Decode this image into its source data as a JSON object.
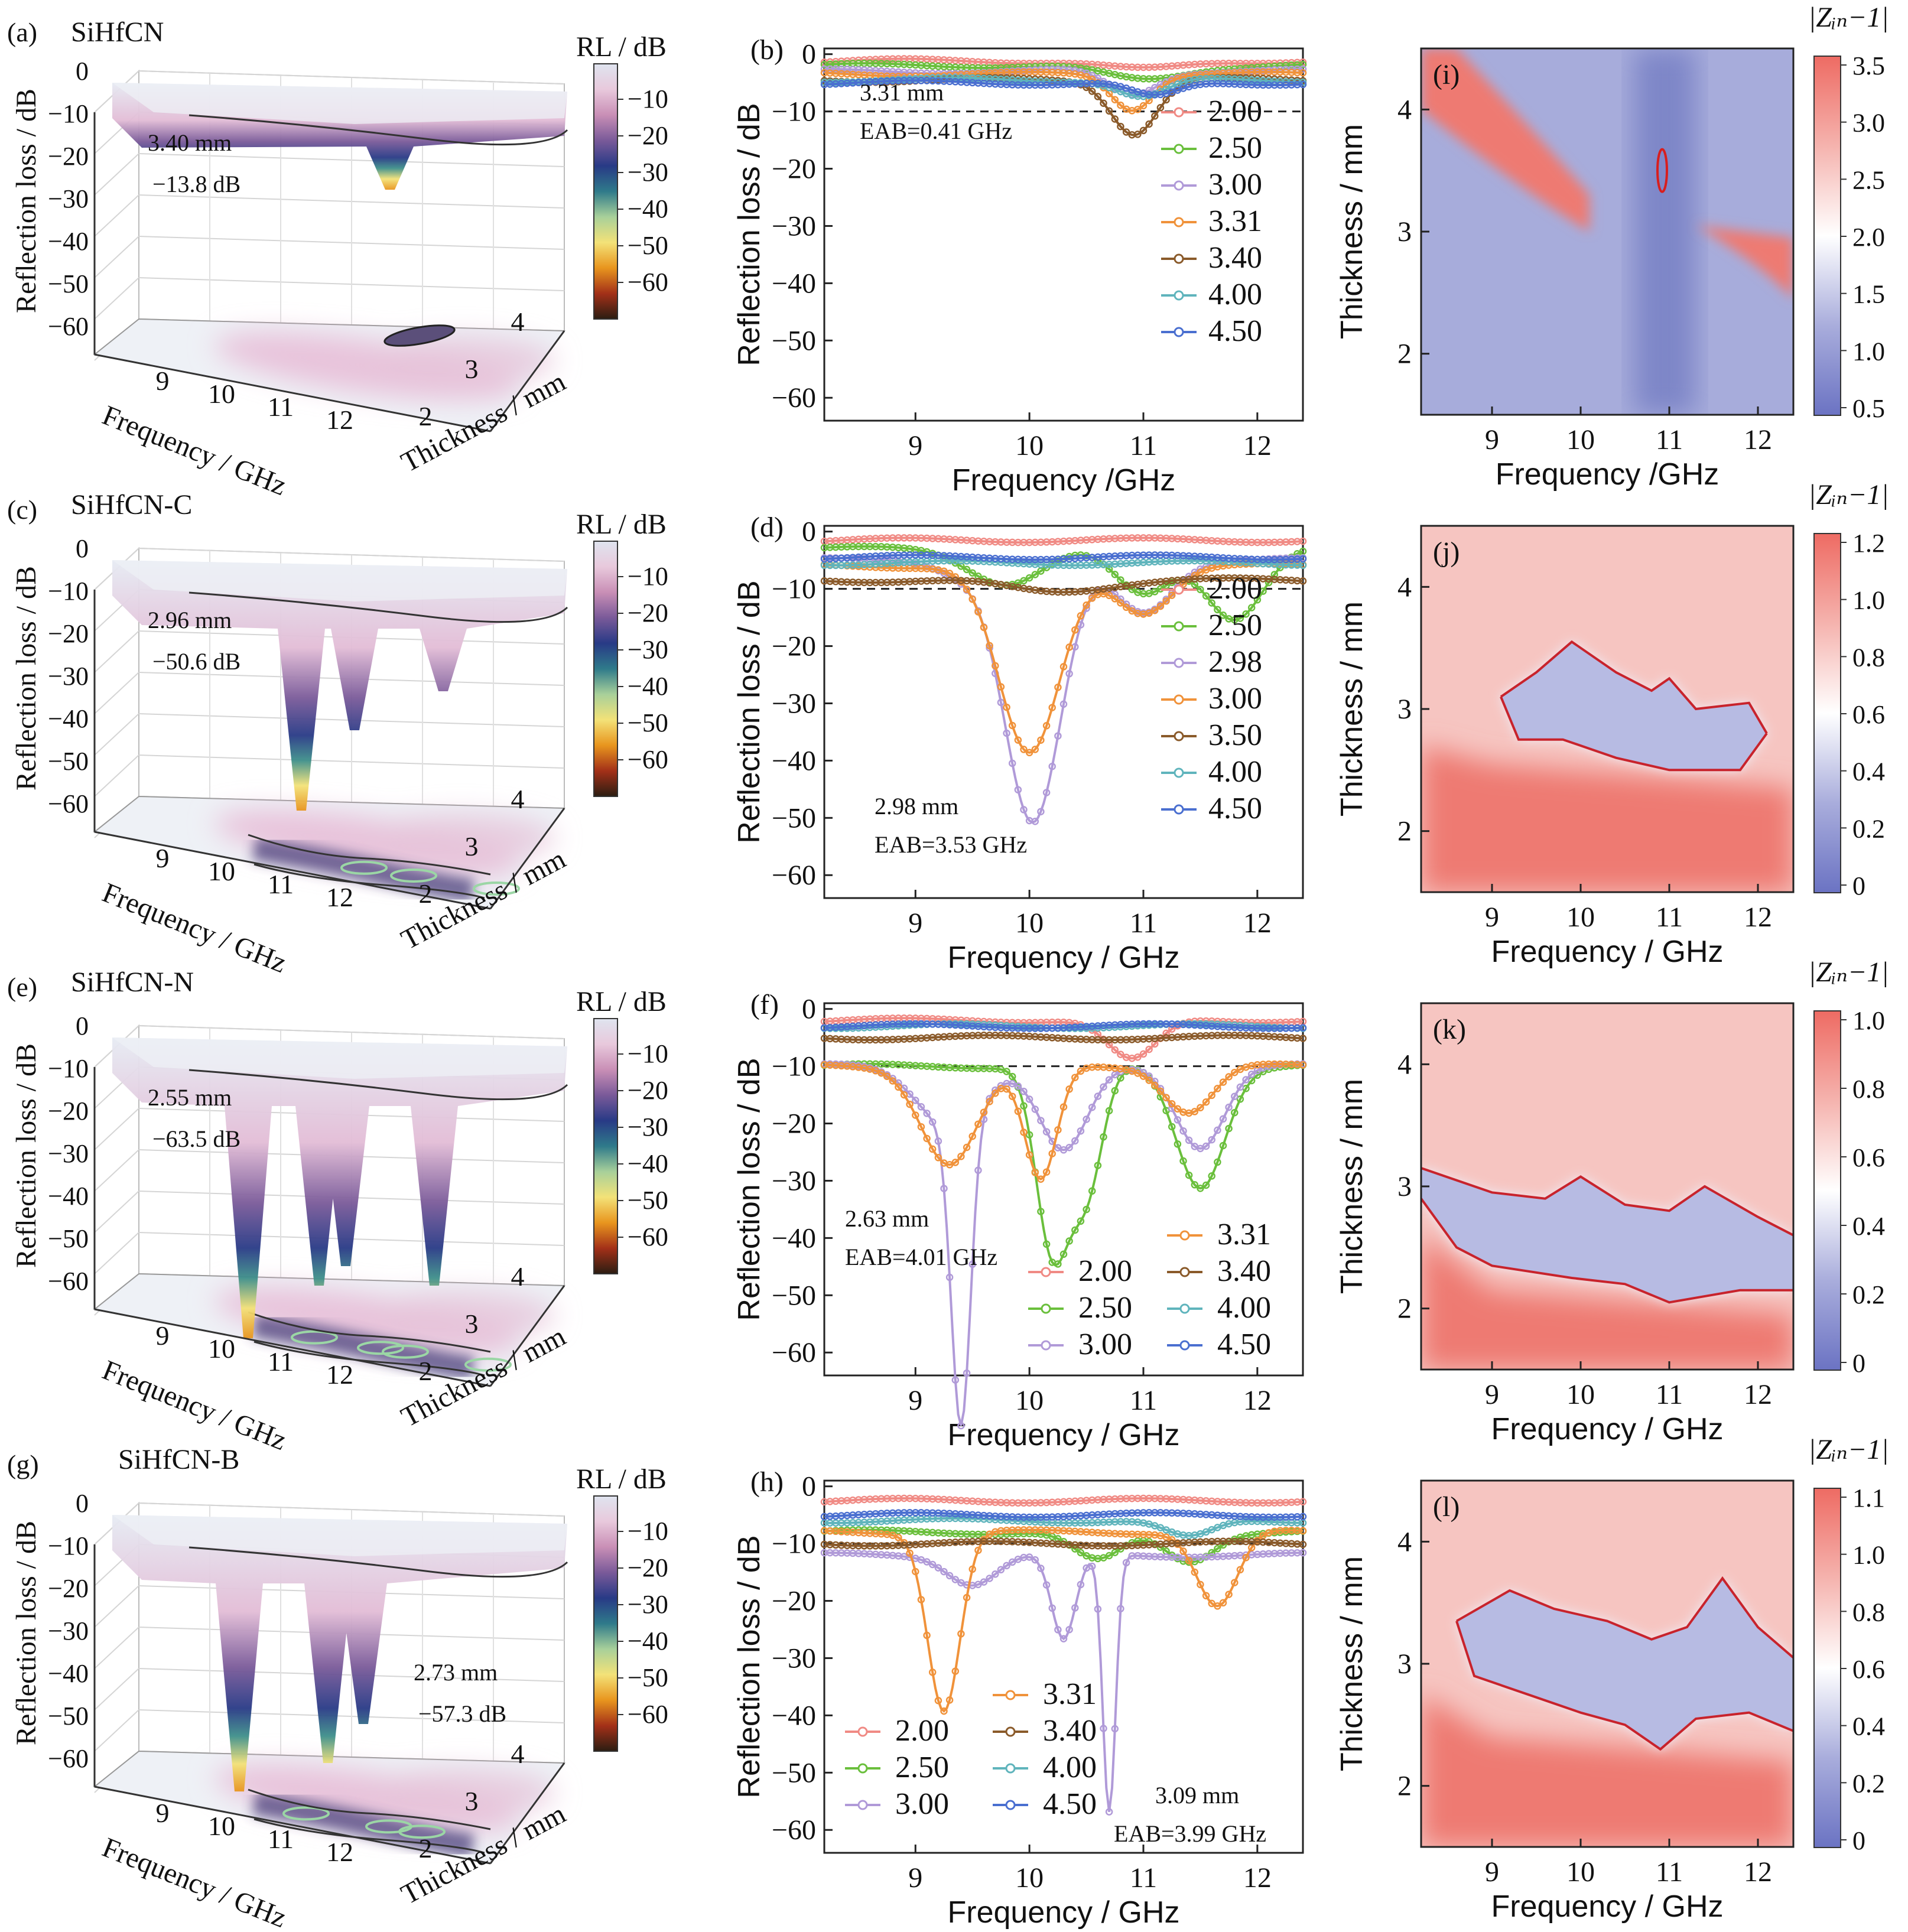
{
  "chart_data": [
    {
      "panel": "a",
      "type": "surface3d",
      "panel_label": "(a)",
      "material": "SiHfCN",
      "zlabel": "Reflection loss / dB",
      "xlabel": "Frequency / GHz",
      "ylabel": "Thickness / mm",
      "zticks": [
        "0",
        "−10",
        "−20",
        "−30",
        "−40",
        "−50",
        "−60"
      ],
      "xticks": [
        "9",
        "10",
        "11",
        "12"
      ],
      "yticks": [
        "2",
        "3",
        "4"
      ],
      "colorbar_title": "RL / dB",
      "colorbar_ticks": [
        "−10",
        "−20",
        "−30",
        "−40",
        "−50",
        "−60"
      ],
      "annotation": [
        "3.40 mm",
        "−13.8 dB"
      ],
      "wells": [
        {
          "f": 11.0,
          "depth": -13.8
        }
      ],
      "baseline": -4
    },
    {
      "panel": "b",
      "type": "line",
      "panel_label": "(b)",
      "xlabel": "Frequency /GHz",
      "ylabel": "Reflection loss / dB",
      "xlim": [
        8.2,
        12.4
      ],
      "ylim": [
        -64,
        1
      ],
      "xticks": [
        "9",
        "10",
        "11",
        "12"
      ],
      "yticks": [
        "0",
        "−10",
        "−20",
        "−30",
        "−40",
        "−50",
        "−60"
      ],
      "reference_line": -10,
      "annotation": [
        "3.31 mm",
        "EAB=0.41 GHz"
      ],
      "series": [
        {
          "name": "2.00",
          "color": "#f08a84",
          "base": -1.2,
          "dips": [
            [
              11.0,
              -1.5,
              0.5
            ]
          ]
        },
        {
          "name": "2.50",
          "color": "#6abf3c",
          "base": -2.0,
          "dips": [
            [
              11.0,
              -2.5,
              0.5
            ]
          ]
        },
        {
          "name": "3.00",
          "color": "#b09ad8",
          "base": -3.0,
          "dips": [
            [
              10.9,
              -4.0,
              0.3
            ]
          ]
        },
        {
          "name": "3.31",
          "color": "#f0923a",
          "base": -3.5,
          "dips": [
            [
              10.9,
              -6.0,
              0.25
            ]
          ]
        },
        {
          "name": "3.40",
          "color": "#8a5a2a",
          "base": -4.5,
          "dips": [
            [
              10.92,
              -9.3,
              0.28
            ]
          ]
        },
        {
          "name": "4.00",
          "color": "#5fb4bc",
          "base": -4.5,
          "dips": [
            [
              11.0,
              -3.0,
              0.3
            ]
          ]
        },
        {
          "name": "4.50",
          "color": "#4a6fd0",
          "base": -5.0,
          "dips": [
            [
              11.1,
              -2.5,
              0.3
            ]
          ]
        }
      ],
      "legend": "right"
    },
    {
      "panel": "i",
      "type": "heatmap",
      "panel_label": "(i)",
      "xlabel": "Frequency /GHz",
      "ylabel": "Thickness / mm",
      "xlim": [
        8.2,
        12.4
      ],
      "ylim": [
        1.5,
        4.5
      ],
      "xticks": [
        "9",
        "10",
        "11",
        "12"
      ],
      "yticks": [
        "2",
        "3",
        "4"
      ],
      "colorbar_title": "|Zᵢₙ−1|",
      "colorbar_ticks": [
        "0.5",
        "1.0",
        "1.5",
        "2.0",
        "2.5",
        "3.0",
        "3.5"
      ],
      "variant": "i"
    },
    {
      "panel": "c",
      "type": "surface3d",
      "panel_label": "(c)",
      "material": "SiHfCN-C",
      "zlabel": "Reflection loss / dB",
      "xlabel": "Frequency / GHz",
      "ylabel": "Thickness / mm",
      "zticks": [
        "0",
        "−10",
        "−20",
        "−30",
        "−40",
        "−50",
        "−60"
      ],
      "xticks": [
        "9",
        "10",
        "11",
        "12"
      ],
      "yticks": [
        "2",
        "3",
        "4"
      ],
      "colorbar_title": "RL / dB",
      "colorbar_ticks": [
        "−10",
        "−20",
        "−30",
        "−40",
        "−50",
        "−60"
      ],
      "annotation": [
        "2.96 mm",
        "−50.6 dB"
      ],
      "wells": [
        {
          "f": 10.0,
          "depth": -50.6
        },
        {
          "f": 10.6,
          "depth": -30
        },
        {
          "f": 11.6,
          "depth": -20
        }
      ],
      "baseline": -8
    },
    {
      "panel": "d",
      "type": "line",
      "panel_label": "(d)",
      "xlabel": "Frequency / GHz",
      "ylabel": "Reflection loss / dB",
      "xlim": [
        8.2,
        12.4
      ],
      "ylim": [
        -64,
        1
      ],
      "xticks": [
        "9",
        "10",
        "11",
        "12"
      ],
      "yticks": [
        "0",
        "−10",
        "−20",
        "−30",
        "−40",
        "−50",
        "−60"
      ],
      "reference_line": -10,
      "annotation": [
        "2.98 mm",
        "EAB=3.53 GHz"
      ],
      "series": [
        {
          "name": "2.00",
          "color": "#f08a84",
          "base": -1.5,
          "dips": []
        },
        {
          "name": "2.50",
          "color": "#6abf3c",
          "base": -3.0,
          "dips": [
            [
              9.8,
              -6.0,
              0.45
            ],
            [
              11.0,
              -8.0,
              0.35
            ],
            [
              11.8,
              -12.0,
              0.35
            ]
          ]
        },
        {
          "name": "2.98",
          "color": "#b09ad8",
          "base": -5.0,
          "dips": [
            [
              10.03,
              -46.0,
              0.35
            ],
            [
              9.4,
              -2.0,
              0.3
            ],
            [
              11.0,
              -9.0,
              0.35
            ]
          ]
        },
        {
          "name": "3.00",
          "color": "#f0923a",
          "base": -6.0,
          "dips": [
            [
              10.0,
              -33.0,
              0.38
            ],
            [
              11.0,
              -8.0,
              0.35
            ]
          ]
        },
        {
          "name": "3.50",
          "color": "#8a5a2a",
          "base": -8.5,
          "dips": [
            [
              10.2,
              -2.0,
              0.6
            ]
          ]
        },
        {
          "name": "4.00",
          "color": "#5fb4bc",
          "base": -5.5,
          "dips": []
        },
        {
          "name": "4.50",
          "color": "#4a6fd0",
          "base": -4.5,
          "dips": []
        }
      ],
      "legend": "right"
    },
    {
      "panel": "j",
      "type": "heatmap",
      "panel_label": "(j)",
      "xlabel": "Frequency / GHz",
      "ylabel": "Thickness / mm",
      "xlim": [
        8.2,
        12.4
      ],
      "ylim": [
        1.5,
        4.5
      ],
      "xticks": [
        "9",
        "10",
        "11",
        "12"
      ],
      "yticks": [
        "2",
        "3",
        "4"
      ],
      "colorbar_title": "|Zᵢₙ−1|",
      "colorbar_ticks": [
        "0",
        "0.2",
        "0.4",
        "0.6",
        "0.8",
        "1.0",
        "1.2"
      ],
      "variant": "j"
    },
    {
      "panel": "e",
      "type": "surface3d",
      "panel_label": "(e)",
      "material": "SiHfCN-N",
      "zlabel": "Reflection loss / dB",
      "xlabel": "Frequency / GHz",
      "ylabel": "Thickness / mm",
      "zticks": [
        "0",
        "−10",
        "−20",
        "−30",
        "−40",
        "−50",
        "−60"
      ],
      "xticks": [
        "9",
        "10",
        "11",
        "12"
      ],
      "yticks": [
        "2",
        "3",
        "4"
      ],
      "colorbar_title": "RL / dB",
      "colorbar_ticks": [
        "−10",
        "−20",
        "−30",
        "−40",
        "−50",
        "−60"
      ],
      "annotation": [
        "2.55 mm",
        "−63.5 dB"
      ],
      "wells": [
        {
          "f": 9.4,
          "depth": -63.5
        },
        {
          "f": 10.2,
          "depth": -50
        },
        {
          "f": 10.5,
          "depth": -45
        },
        {
          "f": 11.5,
          "depth": -50
        }
      ],
      "baseline": -8
    },
    {
      "panel": "f",
      "type": "line",
      "panel_label": "(f)",
      "xlabel": "Frequency / GHz",
      "ylabel": "Reflection loss / dB",
      "xlim": [
        8.2,
        12.4
      ],
      "ylim": [
        -64,
        1
      ],
      "xticks": [
        "9",
        "10",
        "11",
        "12"
      ],
      "yticks": [
        "0",
        "−10",
        "−20",
        "−30",
        "−40",
        "−50",
        "−60"
      ],
      "reference_line": -10,
      "annotation": [
        "2.63 mm",
        "EAB=4.01 GHz"
      ],
      "series": [
        {
          "name": "2.00",
          "color": "#f08a84",
          "base": -2.0,
          "dips": [
            [
              10.9,
              -7.0,
              0.3
            ]
          ]
        },
        {
          "name": "2.50",
          "color": "#6abf3c",
          "base": -10.0,
          "dips": [
            [
              10.2,
              -32.0,
              0.2
            ],
            [
              10.5,
              -22.0,
              0.2
            ],
            [
              11.5,
              -21.0,
              0.3
            ]
          ]
        },
        {
          "name": "3.00",
          "color": "#b09ad8",
          "base": -10.0,
          "dips": [
            [
              9.4,
              -53.0,
              0.12
            ],
            [
              9.3,
              -10.0,
              0.4
            ],
            [
              10.3,
              -15.0,
              0.3
            ],
            [
              11.5,
              -14.0,
              0.3
            ]
          ]
        },
        {
          "name": "3.31",
          "color": "#f0923a",
          "base": -10.0,
          "dips": [
            [
              9.3,
              -17.0,
              0.35
            ],
            [
              10.1,
              -20.0,
              0.2
            ],
            [
              11.4,
              -8.0,
              0.3
            ]
          ]
        },
        {
          "name": "3.40",
          "color": "#8a5a2a",
          "base": -5.0,
          "dips": []
        },
        {
          "name": "4.00",
          "color": "#5fb4bc",
          "base": -3.0,
          "dips": []
        },
        {
          "name": "4.50",
          "color": "#4a6fd0",
          "base": -3.0,
          "dips": []
        }
      ],
      "legend": "two-column-bottom"
    },
    {
      "panel": "k",
      "type": "heatmap",
      "panel_label": "(k)",
      "xlabel": "Frequency / GHz",
      "ylabel": "Thickness / mm",
      "xlim": [
        8.2,
        12.4
      ],
      "ylim": [
        1.5,
        4.5
      ],
      "xticks": [
        "9",
        "10",
        "11",
        "12"
      ],
      "yticks": [
        "2",
        "3",
        "4"
      ],
      "colorbar_title": "|Zᵢₙ−1|",
      "colorbar_ticks": [
        "0",
        "0.2",
        "0.4",
        "0.6",
        "0.8",
        "1.0"
      ],
      "variant": "k"
    },
    {
      "panel": "g",
      "type": "surface3d",
      "panel_label": "(g)",
      "material": "SiHfCN-B",
      "zlabel": "Reflection loss / dB",
      "xlabel": "Frequency / GHz",
      "ylabel": "Thickness / mm",
      "zticks": [
        "0",
        "−10",
        "−20",
        "−30",
        "−40",
        "−50",
        "−60"
      ],
      "xticks": [
        "9",
        "10",
        "11",
        "12"
      ],
      "yticks": [
        "2",
        "3",
        "4"
      ],
      "colorbar_title": "RL / dB",
      "colorbar_ticks": [
        "−10",
        "−20",
        "−30",
        "−40",
        "−50",
        "−60"
      ],
      "annotation": [
        "2.73 mm",
        "−57.3 dB"
      ],
      "wells": [
        {
          "f": 9.3,
          "depth": -57.3
        },
        {
          "f": 10.3,
          "depth": -50
        },
        {
          "f": 10.7,
          "depth": -40
        }
      ],
      "baseline": -8
    },
    {
      "panel": "h",
      "type": "line",
      "panel_label": "(h)",
      "xlabel": "Frequency / GHz",
      "ylabel": "Reflection loss / dB",
      "xlim": [
        8.2,
        12.4
      ],
      "ylim": [
        -64,
        1
      ],
      "xticks": [
        "9",
        "10",
        "11",
        "12"
      ],
      "yticks": [
        "0",
        "−10",
        "−20",
        "−30",
        "−40",
        "−50",
        "−60"
      ],
      "reference_line": -10,
      "annotation": [
        "3.09 mm",
        "EAB=3.99 GHz"
      ],
      "series": [
        {
          "name": "2.00",
          "color": "#f08a84",
          "base": -2.5,
          "dips": []
        },
        {
          "name": "2.50",
          "color": "#6abf3c",
          "base": -8.0,
          "dips": [
            [
              10.6,
              -5.0,
              0.3
            ],
            [
              11.4,
              -5.0,
              0.3
            ]
          ]
        },
        {
          "name": "3.00",
          "color": "#b09ad8",
          "base": -12.0,
          "dips": [
            [
              10.7,
              -45.0,
              0.08
            ],
            [
              10.3,
              -15.0,
              0.15
            ],
            [
              9.5,
              -5.0,
              0.3
            ]
          ]
        },
        {
          "name": "3.31",
          "color": "#f0923a",
          "base": -8.0,
          "dips": [
            [
              9.25,
              -31.0,
              0.2
            ],
            [
              11.65,
              -13.0,
              0.25
            ]
          ]
        },
        {
          "name": "3.40",
          "color": "#8a5a2a",
          "base": -10.0,
          "dips": []
        },
        {
          "name": "4.00",
          "color": "#5fb4bc",
          "base": -6.0,
          "dips": [
            [
              11.4,
              -3.0,
              0.3
            ]
          ]
        },
        {
          "name": "4.50",
          "color": "#4a6fd0",
          "base": -5.0,
          "dips": []
        }
      ],
      "legend": "two-column-bottom"
    },
    {
      "panel": "l",
      "type": "heatmap",
      "panel_label": "(l)",
      "xlabel": "Frequency / GHz",
      "ylabel": "Thickness / mm",
      "xlim": [
        8.2,
        12.4
      ],
      "ylim": [
        1.5,
        4.5
      ],
      "xticks": [
        "9",
        "10",
        "11",
        "12"
      ],
      "yticks": [
        "2",
        "3",
        "4"
      ],
      "colorbar_title": "|Zᵢₙ−1|",
      "colorbar_ticks": [
        "0",
        "0.2",
        "0.4",
        "0.6",
        "0.8",
        "1.0",
        "1.1"
      ],
      "variant": "l"
    }
  ]
}
